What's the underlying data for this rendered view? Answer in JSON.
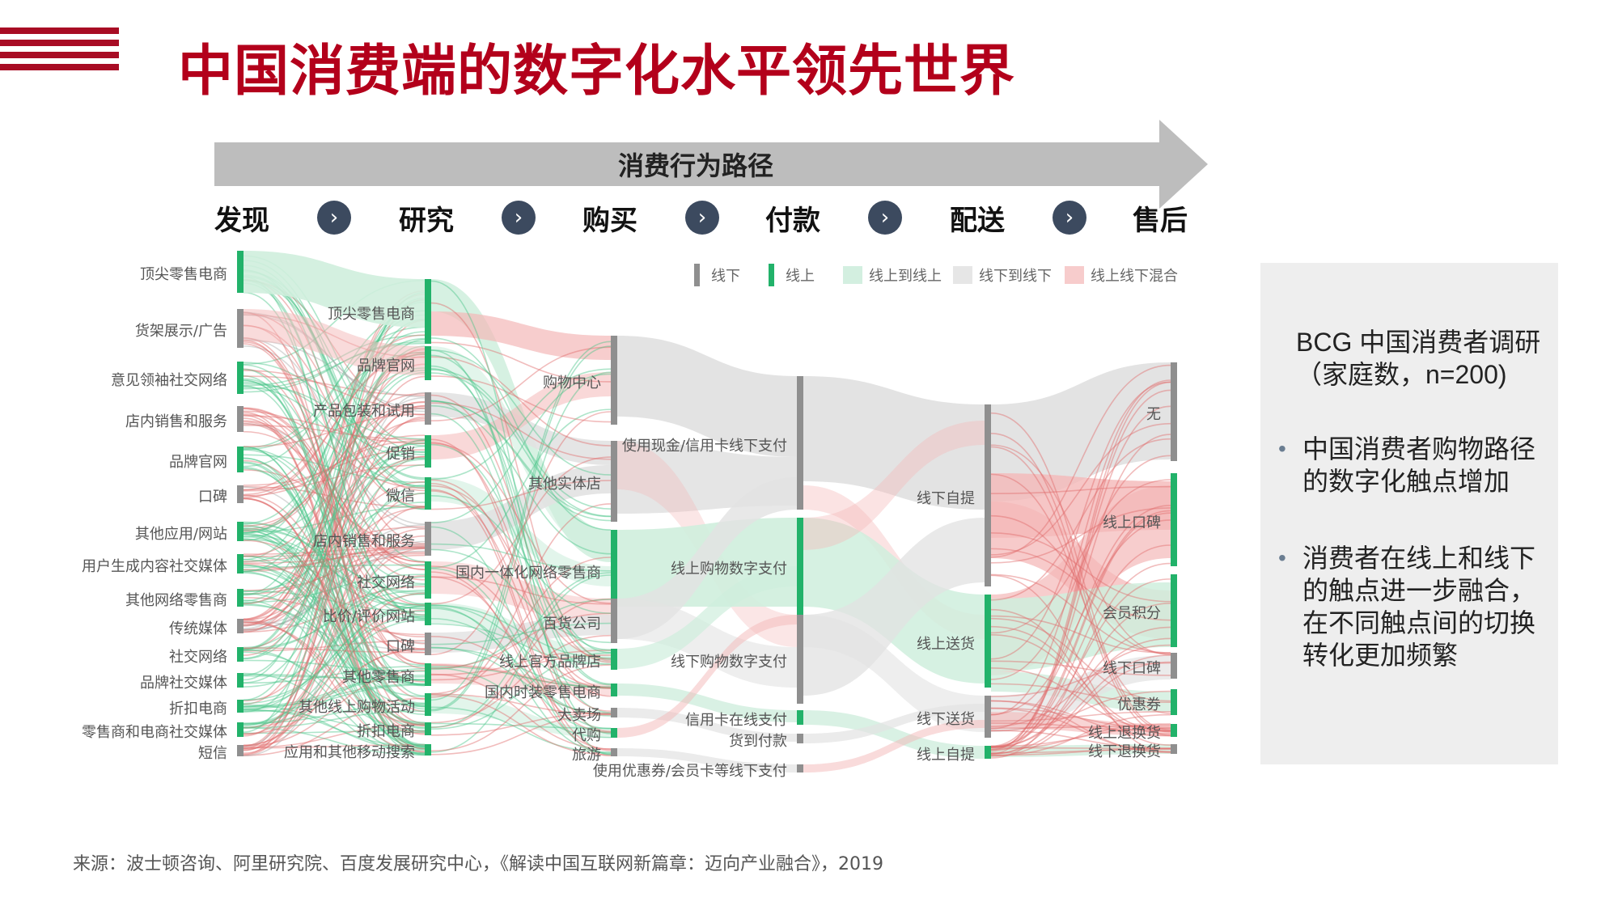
{
  "title": "中国消费端的数字化水平领先世界",
  "arrow_label": "消费行为路径",
  "stages": [
    "发现",
    "研究",
    "购买",
    "付款",
    "配送",
    "售后"
  ],
  "legend": [
    {
      "label": "线下",
      "type": "bar",
      "color": "#8f8f8f"
    },
    {
      "label": "线上",
      "type": "bar",
      "color": "#22b26a"
    },
    {
      "label": "线上到线上",
      "type": "box",
      "color": "#d3efe0"
    },
    {
      "label": "线下到线下",
      "type": "box",
      "color": "#e6e6e6"
    },
    {
      "label": "线上线下混合",
      "type": "box",
      "color": "#f7cccc"
    }
  ],
  "colors": {
    "offline": "#8f8f8f",
    "online": "#22b26a",
    "online_flow": "#cfeedd",
    "offline_flow": "#e2e2e2",
    "mixed_flow": "#f4b8b8",
    "brand": "#a80c24"
  },
  "columns": {
    "discover": [
      "顶尖零售电商",
      "货架展示/广告",
      "意见领袖社交网络",
      "店内销售和服务",
      "品牌官网",
      "口碑",
      "其他应用/网站",
      "用户生成内容社交媒体",
      "其他网络零售商",
      "传统媒体",
      "社交网络",
      "品牌社交媒体",
      "折扣电商",
      "零售商和电商社交媒体",
      "短信"
    ],
    "research": [
      "顶尖零售电商",
      "品牌官网",
      "产品包装和试用",
      "促销",
      "微信",
      "店内销售和服务",
      "社交网络",
      "比价/评价网站",
      "口碑",
      "其他零售商",
      "其他线上购物活动",
      "折扣电商",
      "应用和其他移动搜索"
    ],
    "purchase": [
      "购物中心",
      "其他实体店",
      "国内一体化网络零售商",
      "百货公司",
      "线上官方品牌店",
      "国内时装零售电商",
      "大卖场",
      "代购",
      "旅游"
    ],
    "payment": [
      "使用现金/信用卡线下支付",
      "线上购物数字支付",
      "线下购物数字支付",
      "信用卡在线支付",
      "货到付款",
      "使用优惠券/会员卡等线下支付"
    ],
    "delivery": [
      "线下自提",
      "线上送货",
      "线下送货",
      "线上自提"
    ],
    "aftersales": [
      "无",
      "线上口碑",
      "会员积分",
      "线下口碑",
      "优惠券",
      "线上退换货",
      "线下退换货"
    ]
  },
  "panel": {
    "heading": "BCG 中国消费者调研（家庭数，n=200)",
    "bullets": [
      "中国消费者购物路径的数字化触点增加",
      "消费者在线上和线下的触点进一步融合，在不同触点间的切换转化更加频繁"
    ]
  },
  "source": "来源：波士顿咨询、阿里研究院、百度发展研究中心，《解读中国互联网新篇章：迈向产业融合》，2019"
}
